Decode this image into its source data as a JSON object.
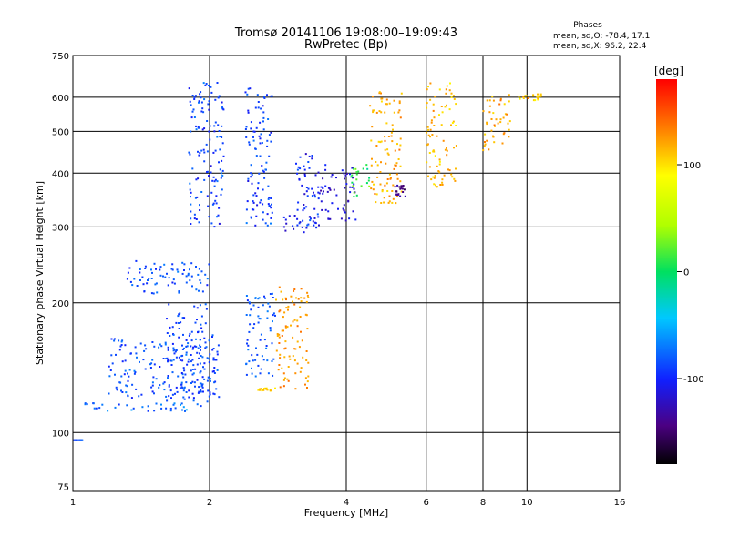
{
  "chart_data": {
    "type": "scatter",
    "title": "Tromsø 20141106 19:08:00–19:09:43",
    "subtitle": "RwPretec (Bp)",
    "stats_title": "Phases",
    "stats": [
      "mean, sd,O: -78.4, 17.1",
      "mean, sd,X:  96.2, 22.4"
    ],
    "xlabel": "Frequency [MHz]",
    "ylabel": "Stationary phase Virtual Height [km]",
    "x_scale": "log2",
    "y_scale": "log",
    "xlim": [
      1,
      16
    ],
    "ylim": [
      73,
      750
    ],
    "x_ticks": [
      1,
      2,
      4,
      6,
      8,
      10,
      16
    ],
    "y_ticks": [
      75,
      100,
      200,
      300,
      400,
      500,
      600,
      750
    ],
    "x_grid": [
      2,
      4,
      6,
      8,
      10
    ],
    "y_grid": [
      100,
      200,
      300,
      400,
      500,
      600
    ],
    "colorbar": {
      "label": "[deg]",
      "range": [
        -180,
        180
      ],
      "ticks": [
        100,
        0,
        -100
      ]
    },
    "series": [
      {
        "freq": [
          1.0,
          1.05
        ],
        "height": [
          96,
          96
        ],
        "phase": [
          -80,
          -80
        ]
      },
      {
        "freq": [
          1.05,
          1.8
        ],
        "height": [
          112,
          117
        ],
        "phase": [
          -60,
          -90
        ]
      },
      {
        "freq": [
          1.2,
          2.1
        ],
        "height": [
          120,
          165
        ],
        "phase": [
          -80,
          -90
        ]
      },
      {
        "freq": [
          1.3,
          2.0
        ],
        "height": [
          210,
          250
        ],
        "phase": [
          -90,
          -80
        ]
      },
      {
        "freq": [
          1.6,
          2.05
        ],
        "height": [
          115,
          200
        ],
        "phase": [
          -85,
          -90
        ]
      },
      {
        "freq": [
          1.8,
          2.15
        ],
        "height": [
          300,
          650
        ],
        "phase": [
          -80,
          -100
        ]
      },
      {
        "freq": [
          2.4,
          2.75
        ],
        "height": [
          300,
          640
        ],
        "phase": [
          -80,
          -100
        ]
      },
      {
        "freq": [
          2.55,
          2.8
        ],
        "height": [
          125,
          127
        ],
        "phase": [
          100,
          110
        ]
      },
      {
        "freq": [
          2.4,
          2.8
        ],
        "height": [
          135,
          210
        ],
        "phase": [
          -75,
          -85
        ]
      },
      {
        "freq": [
          2.9,
          3.5
        ],
        "height": [
          290,
          320
        ],
        "phase": [
          -100,
          -110
        ]
      },
      {
        "freq": [
          3.1,
          3.5
        ],
        "height": [
          300,
          450
        ],
        "phase": [
          -90,
          -110
        ]
      },
      {
        "freq": [
          2.8,
          3.3
        ],
        "height": [
          125,
          220
        ],
        "phase": [
          120,
          130
        ]
      },
      {
        "freq": [
          3.5,
          4.2
        ],
        "height": [
          310,
          420
        ],
        "phase": [
          -110,
          -120
        ]
      },
      {
        "freq": [
          4.1,
          4.5
        ],
        "height": [
          350,
          420
        ],
        "phase": [
          -10,
          30
        ]
      },
      {
        "freq": [
          4.5,
          5.3
        ],
        "height": [
          340,
          620
        ],
        "phase": [
          110,
          130
        ]
      },
      {
        "freq": [
          5.1,
          5.4
        ],
        "height": [
          350,
          375
        ],
        "phase": [
          -150,
          -140
        ]
      },
      {
        "freq": [
          6.0,
          7.0
        ],
        "height": [
          370,
          650
        ],
        "phase": [
          105,
          120
        ]
      },
      {
        "freq": [
          8.0,
          9.2
        ],
        "height": [
          450,
          610
        ],
        "phase": [
          110,
          130
        ]
      },
      {
        "freq": [
          9.5,
          11.0
        ],
        "height": [
          590,
          610
        ],
        "phase": [
          90,
          120
        ]
      }
    ]
  }
}
